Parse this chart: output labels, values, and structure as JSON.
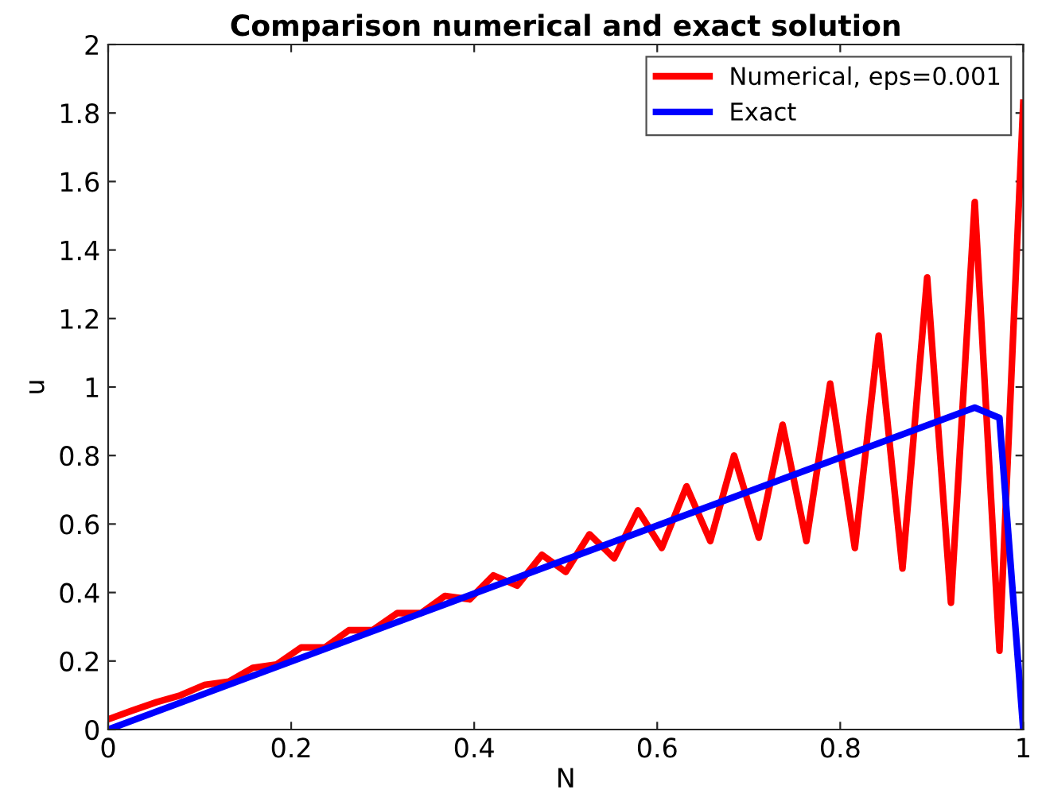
{
  "chart_data": {
    "type": "line",
    "title": "Comparison numerical and exact solution",
    "xlabel": "N",
    "ylabel": "u",
    "xlim": [
      0,
      1
    ],
    "ylim": [
      0,
      2
    ],
    "xticks": [
      0,
      0.2,
      0.4,
      0.6,
      0.8,
      1
    ],
    "yticks": [
      0,
      0.2,
      0.4,
      0.6,
      0.8,
      1,
      1.2,
      1.4,
      1.6,
      1.8,
      2
    ],
    "grid": false,
    "legend": "top right",
    "marker": "none",
    "line_style": "solid",
    "series": [
      {
        "name": "Numerical, eps=0.001",
        "color": "#ff0000",
        "x": [
          0,
          0.026,
          0.053,
          0.079,
          0.105,
          0.132,
          0.158,
          0.184,
          0.211,
          0.237,
          0.263,
          0.289,
          0.316,
          0.342,
          0.368,
          0.395,
          0.421,
          0.447,
          0.474,
          0.5,
          0.526,
          0.553,
          0.579,
          0.605,
          0.632,
          0.658,
          0.684,
          0.711,
          0.737,
          0.763,
          0.789,
          0.816,
          0.842,
          0.868,
          0.895,
          0.921,
          0.947,
          0.974,
          1
        ],
        "values": [
          0.03,
          0.055,
          0.08,
          0.1,
          0.13,
          0.14,
          0.18,
          0.19,
          0.24,
          0.24,
          0.29,
          0.29,
          0.34,
          0.34,
          0.39,
          0.38,
          0.45,
          0.42,
          0.51,
          0.46,
          0.57,
          0.5,
          0.64,
          0.53,
          0.71,
          0.55,
          0.8,
          0.56,
          0.89,
          0.55,
          1.01,
          0.53,
          1.15,
          0.47,
          1.32,
          0.37,
          1.54,
          0.23,
          1.83
        ]
      },
      {
        "name": "Exact",
        "color": "#0000ff",
        "x": [
          0,
          0.947,
          0.974,
          1
        ],
        "values": [
          0,
          0.94,
          0.91,
          0
        ]
      }
    ]
  }
}
